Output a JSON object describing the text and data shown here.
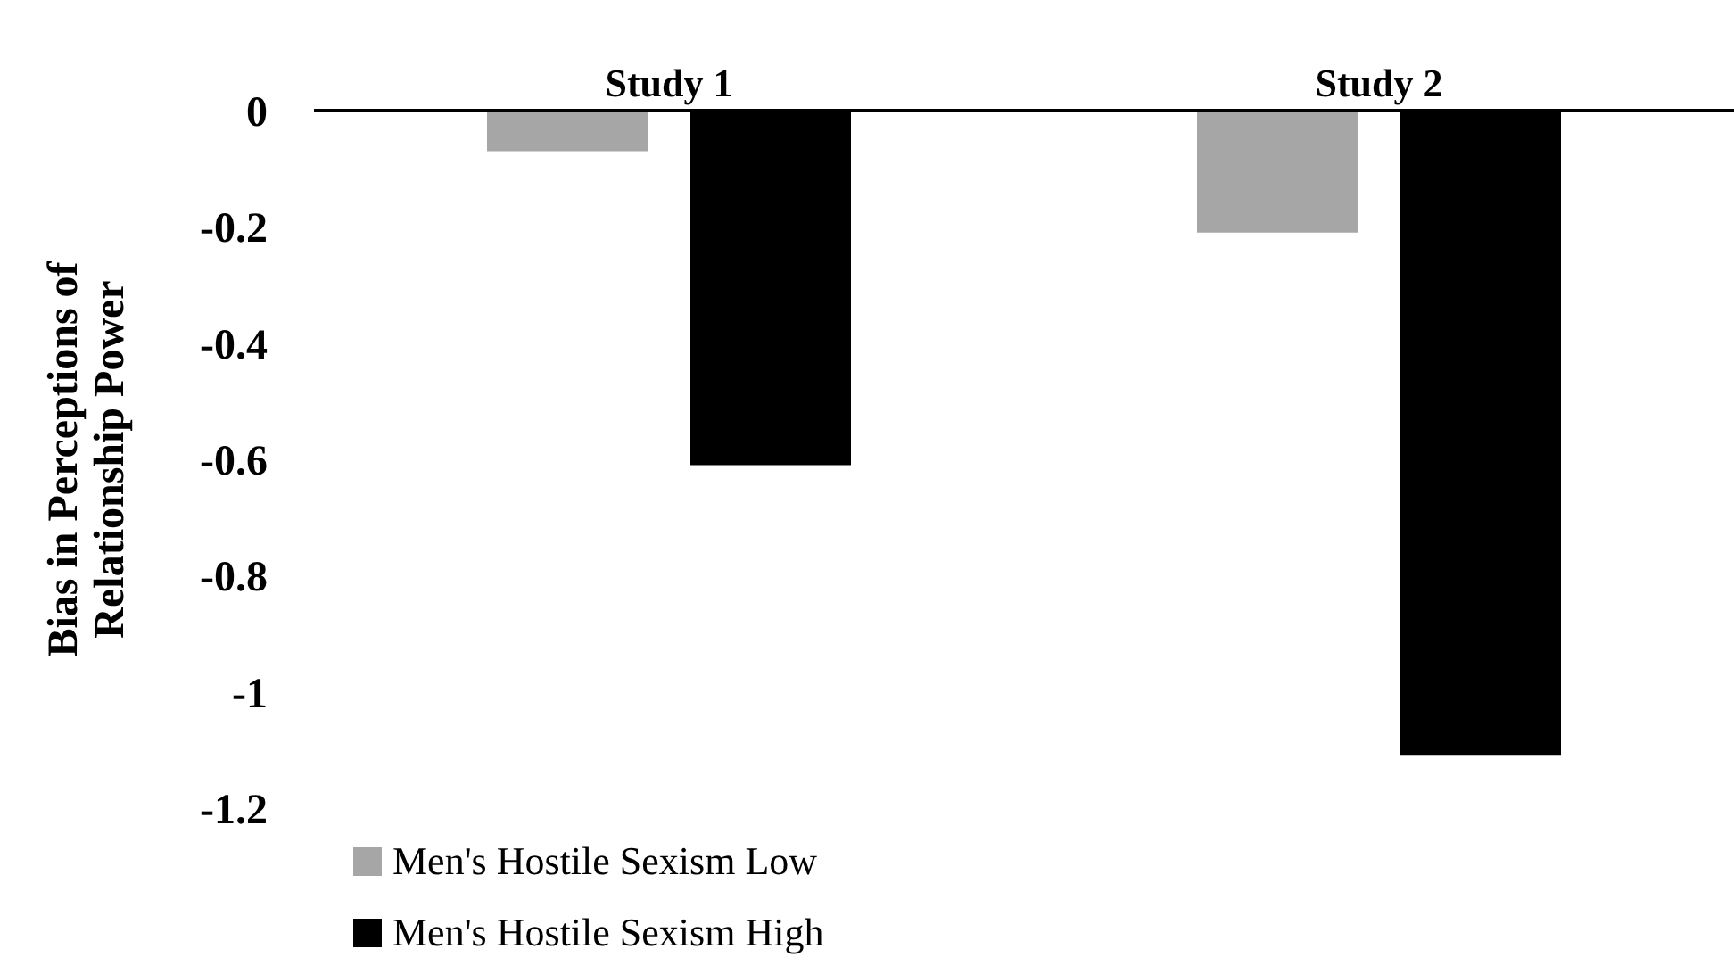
{
  "chart_data": {
    "type": "bar",
    "ylabel": "Bias in Perceptions of Relationship Power",
    "categories": [
      "Study 1",
      "Study 2"
    ],
    "series": [
      {
        "name": "Men's Hostile Sexism Low",
        "color": "#a6a6a6",
        "values": [
          -0.07,
          -0.21
        ]
      },
      {
        "name": "Men's Hostile Sexism High",
        "color": "#000000",
        "values": [
          -0.61,
          -1.11
        ]
      }
    ],
    "ylim": [
      -1.2,
      0
    ],
    "yticks": [
      -1.2,
      -1,
      -0.8,
      -0.6,
      -0.4,
      -0.2,
      0
    ],
    "grid": false,
    "legend": "bottom left"
  }
}
